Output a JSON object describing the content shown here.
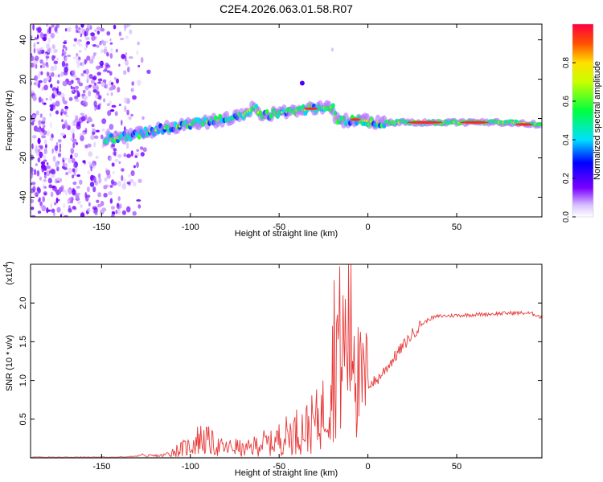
{
  "title": "C2E4.2026.063.01.58.R07",
  "colors": {
    "snr_line": "#e83a3a",
    "axis": "#000000",
    "background": "#ffffff"
  },
  "chart_data": [
    {
      "type": "heatmap",
      "name": "spectrogram",
      "xlabel": "Height of straight line (km)",
      "ylabel": "Frequency (Hz)",
      "xlim": [
        -190,
        98
      ],
      "ylim": [
        -50,
        48
      ],
      "xticks": [
        -150,
        -100,
        -50,
        0,
        50
      ],
      "xtick_labels": [
        "-150",
        "-100",
        "-50",
        "0",
        "50"
      ],
      "yticks": [
        -40,
        -20,
        0,
        20,
        40
      ],
      "ytick_labels": [
        "-40",
        "-20",
        "0",
        "20",
        "40"
      ],
      "ridge": [
        {
          "x": -148,
          "y": -11
        },
        {
          "x": -130,
          "y": -8
        },
        {
          "x": -115,
          "y": -5
        },
        {
          "x": -100,
          "y": -3
        },
        {
          "x": -85,
          "y": -1
        },
        {
          "x": -70,
          "y": 2
        },
        {
          "x": -64,
          "y": 6
        },
        {
          "x": -60,
          "y": 1
        },
        {
          "x": -50,
          "y": 3
        },
        {
          "x": -40,
          "y": 4
        },
        {
          "x": -30,
          "y": 5
        },
        {
          "x": -20,
          "y": 6
        },
        {
          "x": -18,
          "y": 0
        },
        {
          "x": -14,
          "y": -1
        },
        {
          "x": -5,
          "y": -0.5
        },
        {
          "x": 5,
          "y": -2
        },
        {
          "x": 20,
          "y": -2
        },
        {
          "x": 40,
          "y": -2
        },
        {
          "x": 60,
          "y": -2
        },
        {
          "x": 80,
          "y": -2
        },
        {
          "x": 98,
          "y": -3
        }
      ],
      "noise_region_x": [
        -190,
        -130
      ],
      "colorbar": {
        "label": "Normalized spectral amplitude",
        "ticks": [
          0.0,
          0.2,
          0.4,
          0.6,
          0.8
        ],
        "tick_labels": [
          "0.0",
          "0.2",
          "0.4",
          "0.6",
          "0.8"
        ],
        "range": [
          0,
          1
        ]
      }
    },
    {
      "type": "line",
      "name": "snr",
      "xlabel": "Height of straight line (km)",
      "ylabel": "SNR (10 * v/v)",
      "multiplier_label": "(x10",
      "multiplier_exp": "4",
      "multiplier_close": ")",
      "xlim": [
        -190,
        98
      ],
      "ylim": [
        0,
        2.5
      ],
      "xticks": [
        -150,
        -100,
        -50,
        0,
        50
      ],
      "xtick_labels": [
        "-150",
        "-100",
        "-50",
        "0",
        "50"
      ],
      "yticks": [
        0.5,
        1.0,
        1.5,
        2.0
      ],
      "ytick_labels": [
        "0.5",
        "1.0",
        "1.5",
        "2.0"
      ],
      "series": [
        {
          "name": "SNR",
          "color": "#e83a3a",
          "points": [
            [
              -190,
              0.01
            ],
            [
              -140,
              0.01
            ],
            [
              -130,
              0.02
            ],
            [
              -127,
              0.05
            ],
            [
              -125,
              0.02
            ],
            [
              -115,
              0.03
            ],
            [
              -110,
              0.08
            ],
            [
              -100,
              0.15
            ],
            [
              -95,
              0.25
            ],
            [
              -90,
              0.22
            ],
            [
              -85,
              0.15
            ],
            [
              -80,
              0.12
            ],
            [
              -75,
              0.15
            ],
            [
              -70,
              0.1
            ],
            [
              -65,
              0.14
            ],
            [
              -60,
              0.2
            ],
            [
              -55,
              0.18
            ],
            [
              -50,
              0.25
            ],
            [
              -45,
              0.3
            ],
            [
              -40,
              0.35
            ],
            [
              -35,
              0.38
            ],
            [
              -30,
              0.45
            ],
            [
              -25,
              0.6
            ],
            [
              -22,
              0.9
            ],
            [
              -20,
              1.2
            ],
            [
              -18,
              1.6
            ],
            [
              -15,
              1.3
            ],
            [
              -12,
              1.5
            ],
            [
              -10,
              1.8
            ],
            [
              -8,
              1.4
            ],
            [
              -5,
              0.9
            ],
            [
              0,
              0.95
            ],
            [
              5,
              1.0
            ],
            [
              10,
              1.15
            ],
            [
              15,
              1.3
            ],
            [
              20,
              1.45
            ],
            [
              25,
              1.6
            ],
            [
              30,
              1.72
            ],
            [
              35,
              1.8
            ],
            [
              40,
              1.83
            ],
            [
              50,
              1.84
            ],
            [
              60,
              1.85
            ],
            [
              70,
              1.86
            ],
            [
              80,
              1.87
            ],
            [
              90,
              1.87
            ],
            [
              95,
              1.85
            ],
            [
              98,
              1.8
            ]
          ]
        }
      ]
    }
  ]
}
